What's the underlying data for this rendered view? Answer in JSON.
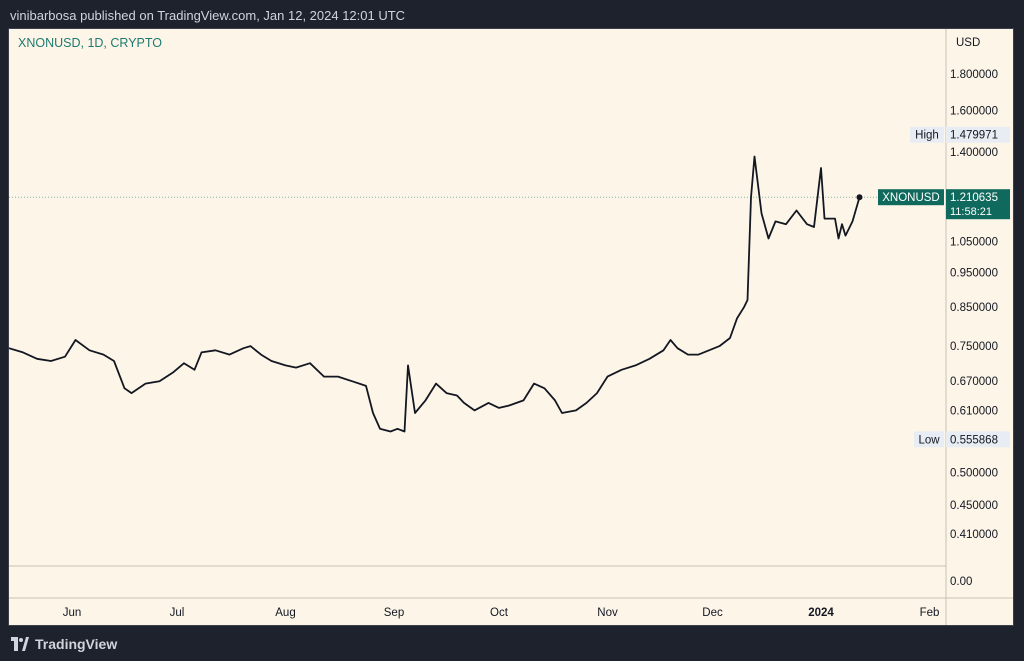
{
  "header": {
    "publisher": "vinibarbosa published on TradingView.com, Jan 12, 2024 12:01 UTC"
  },
  "footer": {
    "brand": "TradingView"
  },
  "colors": {
    "background": "#fdf6e8",
    "line": "#131722",
    "grid": "#e9e3d6",
    "axis_text": "#131722",
    "symbol_text": "#1e7a6e",
    "price_label_bg": "#0f6a5d",
    "hilo_label_bg": "#e8edf3"
  },
  "chart_data": {
    "type": "line",
    "title": "XNONUSD, 1D, CRYPTO",
    "currency": "USD",
    "scale": "log",
    "x_labels": [
      "Jun",
      "Jul",
      "Aug",
      "Sep",
      "Oct",
      "Nov",
      "Dec",
      "2024",
      "Feb"
    ],
    "x_label_dates": [
      "2023-06-01",
      "2023-07-01",
      "2023-08-01",
      "2023-09-01",
      "2023-10-01",
      "2023-11-01",
      "2023-12-01",
      "2024-01-01",
      "2024-02-01"
    ],
    "y_ticks": [
      "1.800000",
      "1.600000",
      "1.400000",
      "1.050000",
      "0.950000",
      "0.850000",
      "0.750000",
      "0.670000",
      "0.610000",
      "0.500000",
      "0.450000",
      "0.410000",
      "0.00"
    ],
    "high": {
      "label": "High",
      "value": "1.479971"
    },
    "low": {
      "label": "Low",
      "value": "0.555868"
    },
    "current": {
      "symbol": "XNONUSD",
      "value": "1.210635",
      "countdown": "11:58:21"
    },
    "series": [
      {
        "values": [
          [
            "2023-05-10",
            0.73
          ],
          [
            "2023-05-14",
            0.745
          ],
          [
            "2023-05-18",
            0.735
          ],
          [
            "2023-05-22",
            0.72
          ],
          [
            "2023-05-26",
            0.715
          ],
          [
            "2023-05-30",
            0.725
          ],
          [
            "2023-06-02",
            0.765
          ],
          [
            "2023-06-06",
            0.74
          ],
          [
            "2023-06-10",
            0.73
          ],
          [
            "2023-06-13",
            0.715
          ],
          [
            "2023-06-16",
            0.655
          ],
          [
            "2023-06-18",
            0.645
          ],
          [
            "2023-06-22",
            0.665
          ],
          [
            "2023-06-26",
            0.67
          ],
          [
            "2023-06-30",
            0.69
          ],
          [
            "2023-07-03",
            0.71
          ],
          [
            "2023-07-06",
            0.695
          ],
          [
            "2023-07-08",
            0.735
          ],
          [
            "2023-07-12",
            0.74
          ],
          [
            "2023-07-16",
            0.73
          ],
          [
            "2023-07-20",
            0.745
          ],
          [
            "2023-07-22",
            0.75
          ],
          [
            "2023-07-25",
            0.73
          ],
          [
            "2023-07-28",
            0.715
          ],
          [
            "2023-08-01",
            0.705
          ],
          [
            "2023-08-04",
            0.7
          ],
          [
            "2023-08-08",
            0.71
          ],
          [
            "2023-08-12",
            0.68
          ],
          [
            "2023-08-16",
            0.68
          ],
          [
            "2023-08-20",
            0.67
          ],
          [
            "2023-08-24",
            0.66
          ],
          [
            "2023-08-26",
            0.605
          ],
          [
            "2023-08-28",
            0.575
          ],
          [
            "2023-08-31",
            0.57
          ],
          [
            "2023-09-02",
            0.575
          ],
          [
            "2023-09-04",
            0.57
          ],
          [
            "2023-09-05",
            0.705
          ],
          [
            "2023-09-07",
            0.605
          ],
          [
            "2023-09-10",
            0.63
          ],
          [
            "2023-09-13",
            0.665
          ],
          [
            "2023-09-16",
            0.645
          ],
          [
            "2023-09-19",
            0.64
          ],
          [
            "2023-09-21",
            0.625
          ],
          [
            "2023-09-24",
            0.61
          ],
          [
            "2023-09-28",
            0.625
          ],
          [
            "2023-10-01",
            0.615
          ],
          [
            "2023-10-04",
            0.62
          ],
          [
            "2023-10-08",
            0.63
          ],
          [
            "2023-10-11",
            0.665
          ],
          [
            "2023-10-14",
            0.655
          ],
          [
            "2023-10-17",
            0.63
          ],
          [
            "2023-10-19",
            0.605
          ],
          [
            "2023-10-23",
            0.61
          ],
          [
            "2023-10-26",
            0.625
          ],
          [
            "2023-10-29",
            0.645
          ],
          [
            "2023-11-01",
            0.68
          ],
          [
            "2023-11-05",
            0.695
          ],
          [
            "2023-11-09",
            0.705
          ],
          [
            "2023-11-13",
            0.72
          ],
          [
            "2023-11-17",
            0.74
          ],
          [
            "2023-11-19",
            0.765
          ],
          [
            "2023-11-21",
            0.745
          ],
          [
            "2023-11-24",
            0.73
          ],
          [
            "2023-11-27",
            0.73
          ],
          [
            "2023-11-30",
            0.74
          ],
          [
            "2023-12-03",
            0.75
          ],
          [
            "2023-12-06",
            0.77
          ],
          [
            "2023-12-08",
            0.82
          ],
          [
            "2023-12-10",
            0.85
          ],
          [
            "2023-12-11",
            0.87
          ],
          [
            "2023-12-12",
            1.21
          ],
          [
            "2023-12-13",
            1.38
          ],
          [
            "2023-12-15",
            1.15
          ],
          [
            "2023-12-17",
            1.06
          ],
          [
            "2023-12-19",
            1.12
          ],
          [
            "2023-12-22",
            1.11
          ],
          [
            "2023-12-25",
            1.16
          ],
          [
            "2023-12-28",
            1.11
          ],
          [
            "2023-12-30",
            1.1
          ],
          [
            "2024-01-01",
            1.33
          ],
          [
            "2024-01-02",
            1.13
          ],
          [
            "2024-01-05",
            1.13
          ],
          [
            "2024-01-06",
            1.06
          ],
          [
            "2024-01-07",
            1.11
          ],
          [
            "2024-01-08",
            1.07
          ],
          [
            "2024-01-10",
            1.12
          ],
          [
            "2024-01-12",
            1.210635
          ]
        ]
      }
    ]
  }
}
